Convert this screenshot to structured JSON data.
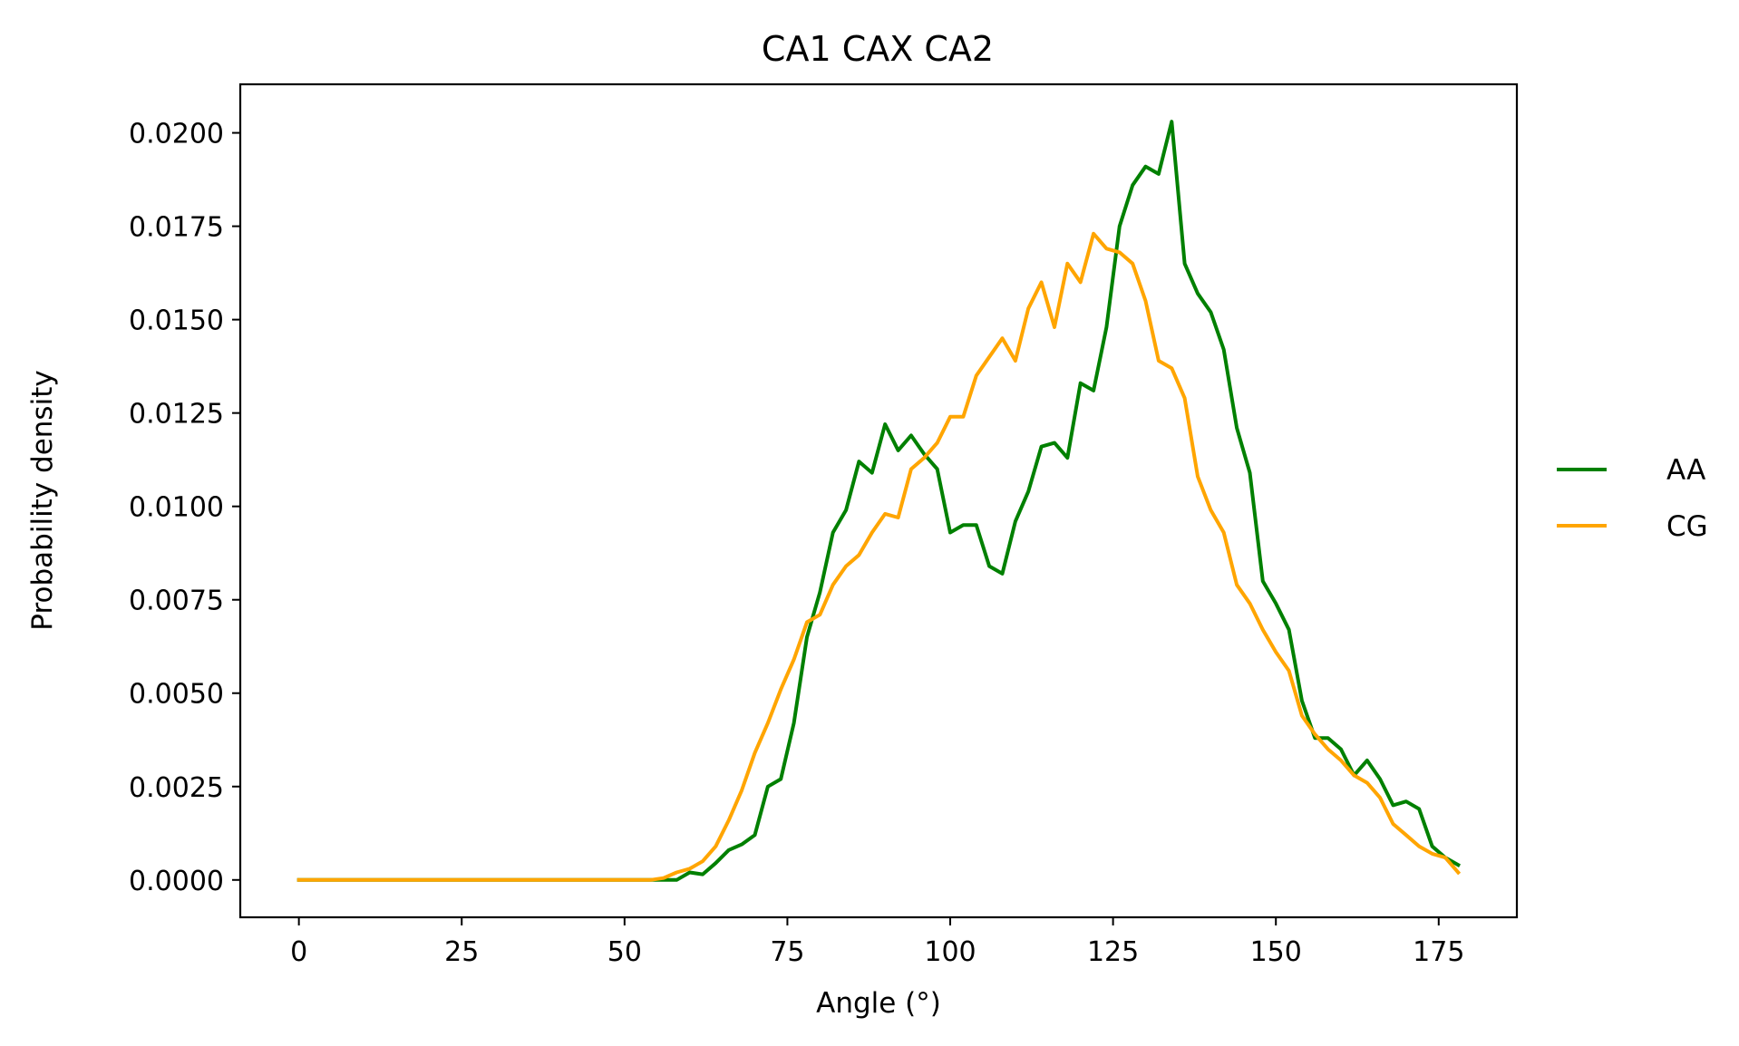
{
  "chart_data": {
    "type": "line",
    "title": "CA1 CAX CA2",
    "xlabel": "Angle (°)",
    "ylabel": "Probability density",
    "xlim": [
      -9,
      187
    ],
    "ylim": [
      -0.001,
      0.0213
    ],
    "xticks": [
      0,
      25,
      50,
      75,
      100,
      125,
      150,
      175
    ],
    "yticks": [
      0.0,
      0.0025,
      0.005,
      0.0075,
      0.01,
      0.0125,
      0.015,
      0.0175,
      0.02
    ],
    "xtick_labels": [
      "0",
      "25",
      "50",
      "75",
      "100",
      "125",
      "150",
      "175"
    ],
    "ytick_labels": [
      "0.0000",
      "0.0025",
      "0.0050",
      "0.0075",
      "0.0100",
      "0.0125",
      "0.0150",
      "0.0175",
      "0.0200"
    ],
    "grid": false,
    "legend_position": "outside-right",
    "x": [
      0,
      2,
      4,
      6,
      8,
      10,
      12,
      14,
      16,
      18,
      20,
      22,
      24,
      26,
      28,
      30,
      32,
      34,
      36,
      38,
      40,
      42,
      44,
      46,
      48,
      50,
      52,
      54,
      56,
      58,
      60,
      62,
      64,
      66,
      68,
      70,
      72,
      74,
      76,
      78,
      80,
      82,
      84,
      86,
      88,
      90,
      92,
      94,
      96,
      98,
      100,
      102,
      104,
      106,
      108,
      110,
      112,
      114,
      116,
      118,
      120,
      122,
      124,
      126,
      128,
      130,
      132,
      134,
      136,
      138,
      140,
      142,
      144,
      146,
      148,
      150,
      152,
      154,
      156,
      158,
      160,
      162,
      164,
      166,
      168,
      170,
      172,
      174,
      176,
      178
    ],
    "series": [
      {
        "name": "AA",
        "color": "#008000",
        "values": [
          0,
          0,
          0,
          0,
          0,
          0,
          0,
          0,
          0,
          0,
          0,
          0,
          0,
          0,
          0,
          0,
          0,
          0,
          0,
          0,
          0,
          0,
          0,
          0,
          0,
          0,
          0,
          0,
          0,
          0,
          0.0002,
          0.00015,
          0.00045,
          0.0008,
          0.00095,
          0.0012,
          0.0025,
          0.0027,
          0.0042,
          0.0065,
          0.0077,
          0.0093,
          0.0099,
          0.0112,
          0.0109,
          0.0122,
          0.0115,
          0.0119,
          0.0114,
          0.011,
          0.0093,
          0.0095,
          0.0095,
          0.0084,
          0.0082,
          0.0096,
          0.0104,
          0.0116,
          0.0117,
          0.0113,
          0.0133,
          0.0131,
          0.0148,
          0.0175,
          0.0186,
          0.0191,
          0.0189,
          0.0203,
          0.0165,
          0.0157,
          0.0152,
          0.0142,
          0.0121,
          0.0109,
          0.008,
          0.0074,
          0.0067,
          0.0048,
          0.0038,
          0.0038,
          0.0035,
          0.0028,
          0.0032,
          0.0027,
          0.002,
          0.0021,
          0.0019,
          0.0009,
          0.0006,
          0.0004
        ]
      },
      {
        "name": "CG",
        "color": "#ffa500",
        "values": [
          0,
          0,
          0,
          0,
          0,
          0,
          0,
          0,
          0,
          0,
          0,
          0,
          0,
          0,
          0,
          0,
          0,
          0,
          0,
          0,
          0,
          0,
          0,
          0,
          0,
          0,
          0,
          0,
          5e-05,
          0.0002,
          0.0003,
          0.0005,
          0.0009,
          0.0016,
          0.0024,
          0.0034,
          0.0042,
          0.0051,
          0.0059,
          0.0069,
          0.0071,
          0.0079,
          0.0084,
          0.0087,
          0.0093,
          0.0098,
          0.0097,
          0.011,
          0.0113,
          0.0117,
          0.0124,
          0.0124,
          0.0135,
          0.014,
          0.0145,
          0.0139,
          0.0153,
          0.016,
          0.0148,
          0.0165,
          0.016,
          0.0173,
          0.0169,
          0.0168,
          0.0165,
          0.0155,
          0.0139,
          0.0137,
          0.0129,
          0.0108,
          0.0099,
          0.0093,
          0.0079,
          0.0074,
          0.0067,
          0.0061,
          0.0056,
          0.0044,
          0.0039,
          0.0035,
          0.0032,
          0.0028,
          0.0026,
          0.0022,
          0.0015,
          0.0012,
          0.0009,
          0.0007,
          0.0006,
          0.0002
        ]
      }
    ]
  }
}
